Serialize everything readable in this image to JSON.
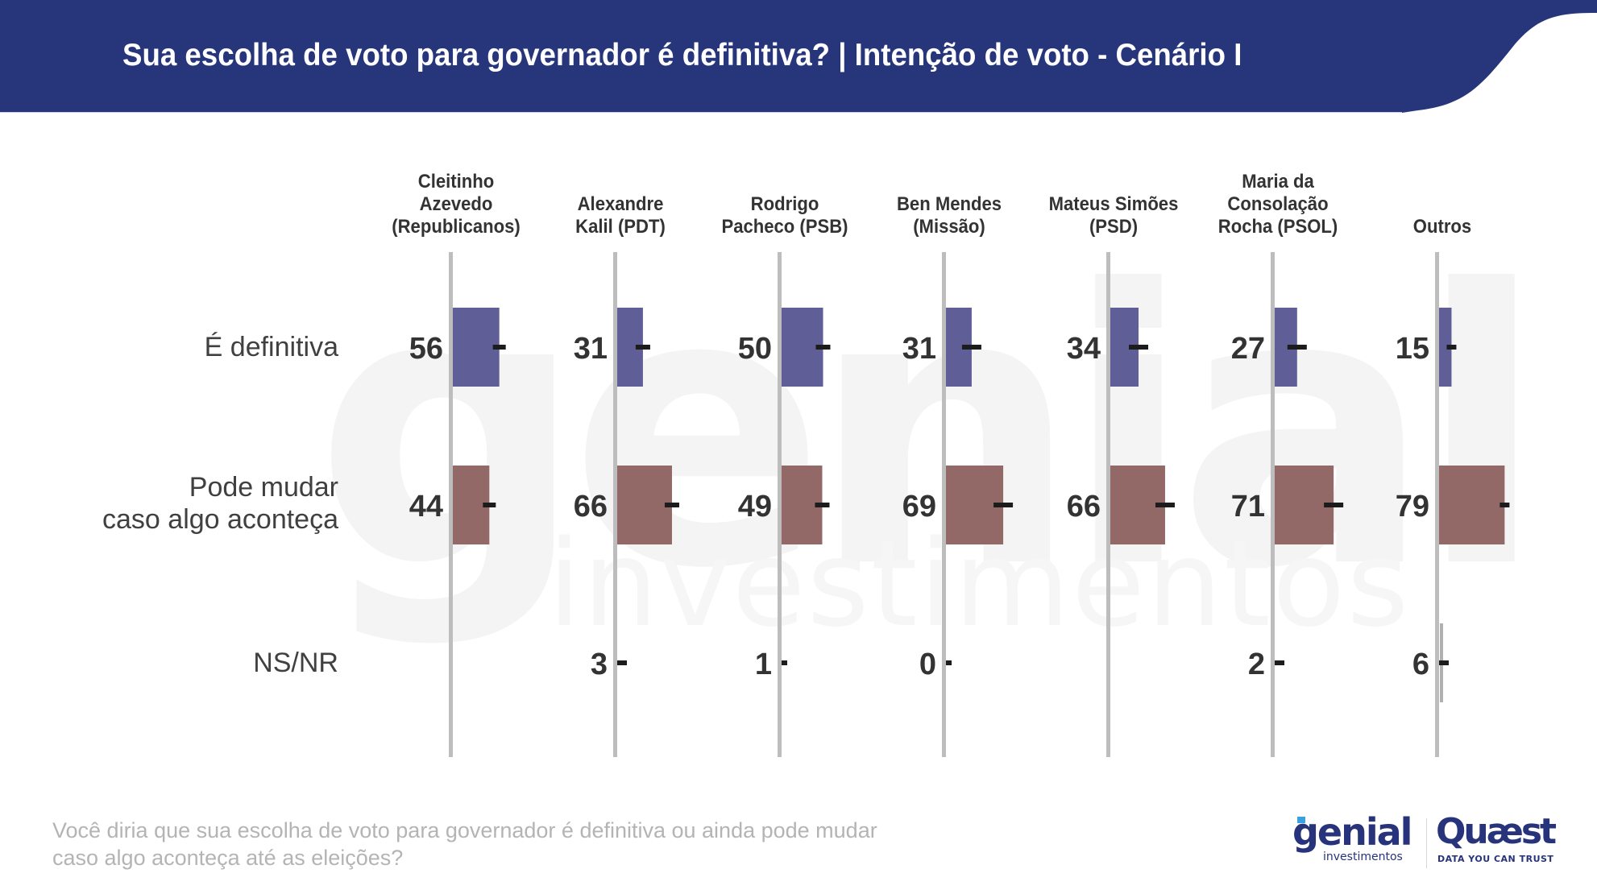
{
  "header": {
    "title": "Sua escolha de voto para governador é definitiva? | Intenção de voto - Cenário I",
    "background_color": "#27357b"
  },
  "chart_data": {
    "type": "bar",
    "orientation": "horizontal-small-multiples",
    "title": "Sua escolha de voto para governador é definitiva? | Intenção de voto - Cenário I",
    "xlabel": "",
    "ylabel": "",
    "value_unit": "%",
    "xlim": [
      0,
      100
    ],
    "grid": false,
    "error_bars": true,
    "row_labels": [
      [
        "É definitiva"
      ],
      [
        "Pode mudar",
        "caso algo aconteça"
      ],
      [
        "NS/NR"
      ]
    ],
    "series_colors": [
      "#5f5e96",
      "#926966",
      "#b5b5b5"
    ],
    "candidates": [
      {
        "name_lines": [
          "Cleitinho",
          "Azevedo",
          "(Republicanos)"
        ],
        "values": [
          56,
          44,
          null
        ]
      },
      {
        "name_lines": [
          "Alexandre",
          "Kalil (PDT)"
        ],
        "values": [
          31,
          66,
          3
        ]
      },
      {
        "name_lines": [
          "Rodrigo",
          "Pacheco (PSB)"
        ],
        "values": [
          50,
          49,
          1
        ]
      },
      {
        "name_lines": [
          "Ben Mendes",
          "(Missão)"
        ],
        "values": [
          31,
          69,
          0
        ]
      },
      {
        "name_lines": [
          "Mateus Simões",
          "(PSD)"
        ],
        "values": [
          34,
          66,
          null
        ]
      },
      {
        "name_lines": [
          "Maria da",
          "Consolação",
          "Rocha (PSOL)"
        ],
        "values": [
          27,
          71,
          2
        ]
      },
      {
        "name_lines": [
          "Outros"
        ],
        "values": [
          15,
          79,
          6
        ]
      }
    ]
  },
  "footnote": {
    "lines": [
      "Você diria que sua escolha de voto para governador é definitiva ou ainda pode mudar",
      "caso algo aconteça até as eleições?"
    ]
  },
  "watermark": {
    "main": "genial",
    "sub": "investimentos"
  },
  "logos": {
    "genial": {
      "word": "genial",
      "sub": "investimentos"
    },
    "quaest": {
      "word": "Quæst",
      "tagline": "DATA YOU CAN TRUST"
    },
    "brand_color": "#27337a"
  }
}
